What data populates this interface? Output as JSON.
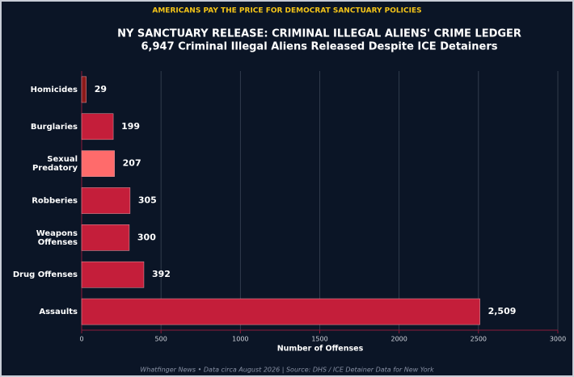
{
  "chart_data": {
    "type": "hbar",
    "banner": "AMERICANS PAY THE PRICE FOR DEMOCRAT SANCTUARY POLICIES",
    "title": "NY SANCTUARY RELEASE: CRIMINAL ILLEGAL ALIENS' CRIME LEDGER",
    "subtitle": "6,947 Criminal Illegal Aliens Released Despite ICE Detainers",
    "categories": [
      "Homicides",
      "Burglaries",
      "Sexual\nPredatory",
      "Robberies",
      "Weapons\nOffenses",
      "Drug Offenses",
      "Assaults"
    ],
    "values": [
      29,
      199,
      207,
      305,
      300,
      392,
      2509
    ],
    "value_labels": [
      "29",
      "199",
      "207",
      "305",
      "300",
      "392",
      "2,509"
    ],
    "colors": [
      "#8b1a1a",
      "#c41e3a",
      "#ff6b6b",
      "#c41e3a",
      "#c41e3a",
      "#c41e3a",
      "#c41e3a"
    ],
    "xlim": [
      0,
      3000
    ],
    "xticks": [
      0,
      500,
      1000,
      1500,
      2000,
      2500,
      3000
    ],
    "xlabel": "Number of Offenses",
    "grid": true,
    "footer": "Whatfinger News • Data circa August 2026 | Source: DHS / ICE Detainer Data for New York"
  }
}
